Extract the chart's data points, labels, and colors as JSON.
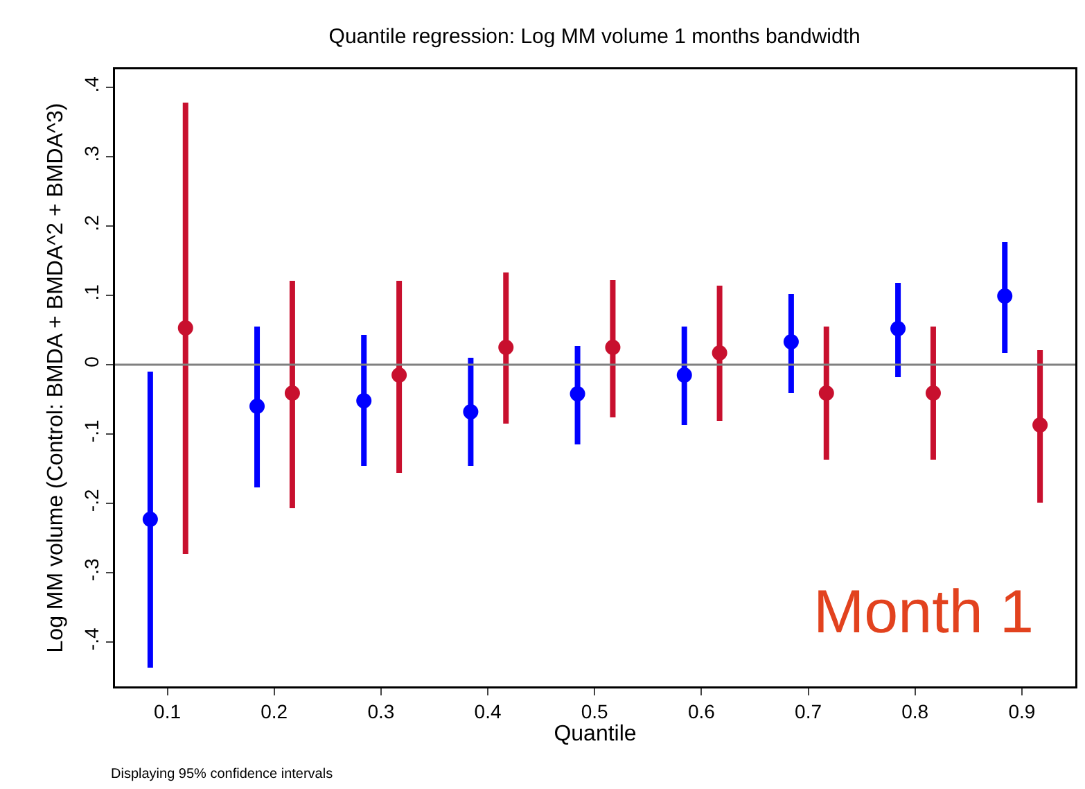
{
  "chart_data": {
    "type": "scatter",
    "title": "Quantile regression: Log MM volume 1 months bandwidth",
    "xlabel": "Quantile",
    "ylabel": "Log MM volume (Control: BMDA + BMDA^2 + BMDA^3)",
    "xlim": [
      0.051,
      0.95
    ],
    "xticks": [
      0.1,
      0.2,
      0.3,
      0.4,
      0.5,
      0.6,
      0.7,
      0.8,
      0.9
    ],
    "ylim": [
      -0.464,
      0.426
    ],
    "yticks": [
      {
        "value": -0.4,
        "label": "-.4"
      },
      {
        "value": -0.3,
        "label": "-.3"
      },
      {
        "value": -0.2,
        "label": "-.2"
      },
      {
        "value": -0.1,
        "label": "-.1"
      },
      {
        "value": 0,
        "label": "0"
      },
      {
        "value": 0.1,
        "label": ".1"
      },
      {
        "value": 0.2,
        "label": ".2"
      },
      {
        "value": 0.3,
        "label": ".3"
      },
      {
        "value": 0.4,
        "label": ".4"
      }
    ],
    "grid": false,
    "marker": "circle",
    "ref_lines": [
      {
        "axis": "y",
        "value": 0,
        "color": "#808080"
      }
    ],
    "annotations": [
      "Displaying 95% confidence intervals",
      "Month 1"
    ],
    "series": [
      {
        "color": "#0000ff",
        "x": [
          0.084,
          0.184,
          0.284,
          0.384,
          0.484,
          0.584,
          0.684,
          0.784,
          0.884
        ],
        "values": [
          -0.223,
          -0.06,
          -0.052,
          -0.068,
          -0.042,
          -0.015,
          0.033,
          0.052,
          0.099
        ],
        "errors": [
          [
            -0.437,
            -0.01
          ],
          [
            -0.177,
            0.055
          ],
          [
            -0.146,
            0.043
          ],
          [
            -0.146,
            0.01
          ],
          [
            -0.115,
            0.027
          ],
          [
            -0.087,
            0.055
          ],
          [
            -0.041,
            0.102
          ],
          [
            -0.018,
            0.118
          ],
          [
            0.017,
            0.177
          ]
        ]
      },
      {
        "color": "#c8102e",
        "x": [
          0.117,
          0.217,
          0.317,
          0.417,
          0.517,
          0.617,
          0.717,
          0.817,
          0.917
        ],
        "values": [
          0.053,
          -0.041,
          -0.015,
          0.025,
          0.025,
          0.017,
          -0.041,
          -0.041,
          -0.087
        ],
        "errors": [
          [
            -0.273,
            0.378
          ],
          [
            -0.207,
            0.121
          ],
          [
            -0.156,
            0.121
          ],
          [
            -0.085,
            0.133
          ],
          [
            -0.076,
            0.122
          ],
          [
            -0.081,
            0.114
          ],
          [
            -0.137,
            0.055
          ],
          [
            -0.137,
            0.055
          ],
          [
            -0.199,
            0.021
          ]
        ]
      }
    ]
  }
}
